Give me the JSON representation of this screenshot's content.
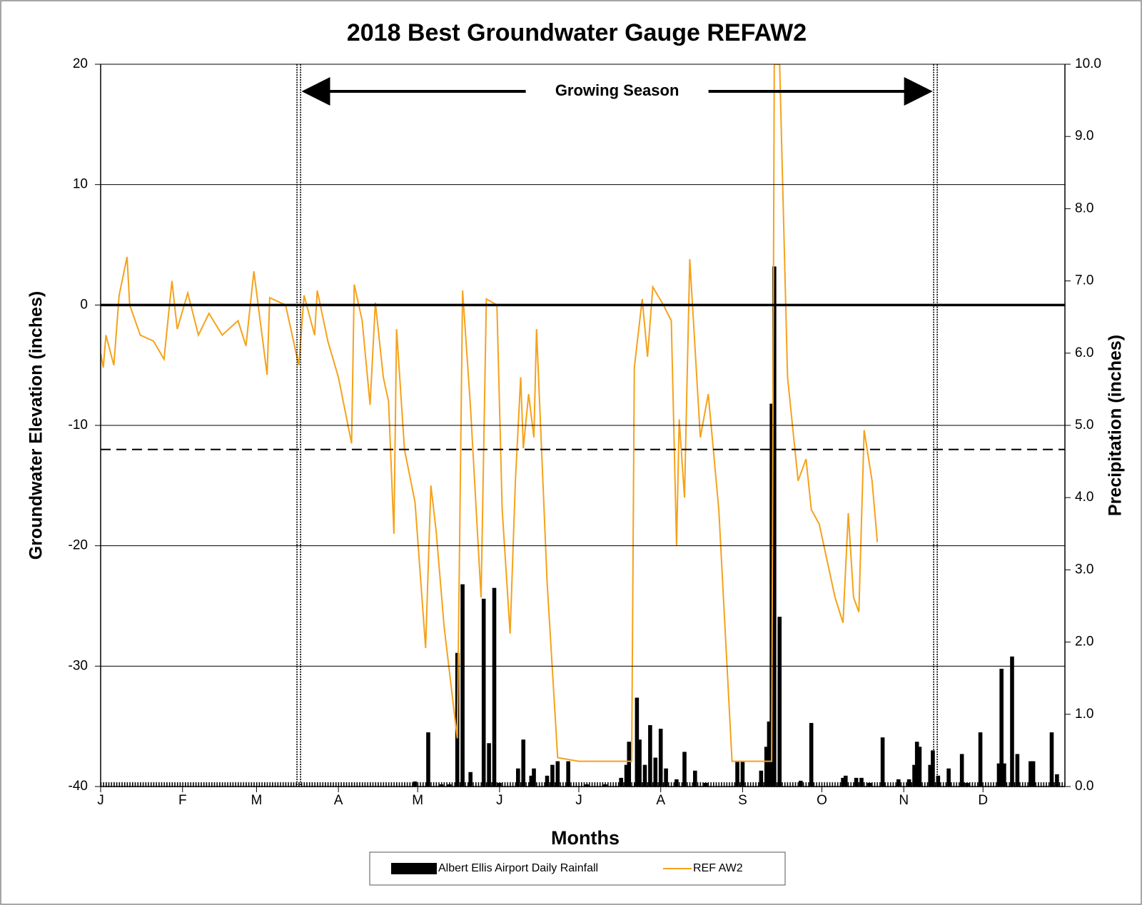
{
  "chart_data": {
    "type": "combo",
    "title": "2018 Best Groundwater Gauge REFAW2",
    "x_label": "Months",
    "y_label": "Groundwater  Elevation (inches)",
    "y2_label": "Precipitation (inches)",
    "xlim": [
      1,
      366
    ],
    "xticks": [
      {
        "value": 1,
        "label": "J"
      },
      {
        "value": 32,
        "label": "F"
      },
      {
        "value": 60,
        "label": "M"
      },
      {
        "value": 91,
        "label": "A"
      },
      {
        "value": 121,
        "label": "M"
      },
      {
        "value": 152,
        "label": "J"
      },
      {
        "value": 182,
        "label": "J"
      },
      {
        "value": 213,
        "label": "A"
      },
      {
        "value": 244,
        "label": "S"
      },
      {
        "value": 274,
        "label": "O"
      },
      {
        "value": 305,
        "label": "N"
      },
      {
        "value": 335,
        "label": "D"
      }
    ],
    "ylim": [
      -40,
      20
    ],
    "yticks": [
      -40,
      -30,
      -20,
      -10,
      0,
      10,
      20
    ],
    "y2lim": [
      0,
      10
    ],
    "y2ticks": [
      {
        "value": 0,
        "label": "0.0"
      },
      {
        "value": 1,
        "label": "1.0"
      },
      {
        "value": 2,
        "label": "2.0"
      },
      {
        "value": 3,
        "label": "3.0"
      },
      {
        "value": 4,
        "label": "4.0"
      },
      {
        "value": 5,
        "label": "5.0"
      },
      {
        "value": 6,
        "label": "6.0"
      },
      {
        "value": 7,
        "label": "7.0"
      },
      {
        "value": 8,
        "label": "8.0"
      },
      {
        "value": 9,
        "label": "9.0"
      },
      {
        "value": 10,
        "label": "10.0"
      }
    ],
    "grid": true,
    "zero_line": 0,
    "threshold": -12,
    "growing_season": {
      "label": "Growing Season",
      "start": 76,
      "end": 317
    },
    "legend": "bottom",
    "series": [
      {
        "name": "Albert Ellis Airport Daily Rainfall",
        "type": "bar",
        "axis": "y2",
        "color": "#000000",
        "x": [
          120,
          125,
          130,
          133,
          136,
          138,
          141,
          146,
          148,
          150,
          152,
          159,
          161,
          164,
          165,
          170,
          172,
          174,
          178,
          185,
          192,
          198,
          200,
          201,
          204,
          205,
          207,
          209,
          211,
          213,
          215,
          219,
          222,
          226,
          230,
          242,
          244,
          251,
          253,
          254,
          255,
          256,
          258,
          266,
          270,
          282,
          283,
          287,
          289,
          292,
          297,
          303,
          307,
          309,
          310,
          311,
          315,
          316,
          318,
          322,
          327,
          329,
          334,
          341,
          342,
          343,
          346,
          348,
          353,
          354,
          361,
          363
        ],
        "values": [
          0.07,
          0.75,
          0.03,
          0.03,
          1.85,
          2.8,
          0.2,
          2.6,
          0.6,
          2.75,
          0.05,
          0.25,
          0.65,
          0.15,
          0.25,
          0.15,
          0.3,
          0.35,
          0.35,
          0.03,
          0.03,
          0.12,
          0.3,
          0.62,
          1.23,
          0.65,
          0.3,
          0.85,
          0.4,
          0.8,
          0.25,
          0.1,
          0.48,
          0.22,
          0.05,
          0.35,
          0.35,
          0.22,
          0.55,
          0.9,
          5.3,
          7.2,
          2.35,
          0.08,
          0.88,
          0.12,
          0.15,
          0.12,
          0.12,
          0.05,
          0.68,
          0.1,
          0.1,
          0.3,
          0.62,
          0.55,
          0.3,
          0.5,
          0.15,
          0.25,
          0.45,
          0.05,
          0.75,
          0.32,
          1.63,
          0.32,
          1.8,
          0.45,
          0.35,
          0.35,
          0.75,
          0.17
        ]
      },
      {
        "name": "REF AW2",
        "type": "line",
        "color": "#f5a21b",
        "x": [
          1,
          2,
          3,
          6,
          8,
          11,
          12,
          16,
          21,
          25,
          28,
          30,
          34,
          38,
          42,
          47,
          53,
          56,
          59,
          64,
          65,
          71,
          74,
          76,
          78,
          82,
          83,
          87,
          91,
          96,
          97,
          100,
          103,
          105,
          108,
          110,
          112,
          113,
          116,
          120,
          124,
          126,
          128,
          131,
          136,
          138,
          141,
          145,
          147,
          151,
          153,
          156,
          158,
          160,
          161,
          163,
          165,
          166,
          170,
          174,
          182,
          202,
          203,
          206,
          208,
          210,
          214,
          217,
          219,
          220,
          222,
          224,
          228,
          231,
          235,
          240,
          255,
          256,
          258,
          261,
          265,
          268,
          270,
          273,
          279,
          282,
          284,
          286,
          288,
          290,
          293,
          295
        ],
        "values": [
          -4,
          -5.2,
          -2.5,
          -5,
          0.8,
          4,
          0,
          -2.5,
          -3,
          -4.5,
          2,
          -2,
          1,
          -2.5,
          -0.7,
          -2.5,
          -1.3,
          -3.4,
          2.8,
          -5.8,
          0.6,
          0,
          -3,
          -5,
          0.8,
          -2.5,
          1.2,
          -3,
          -6,
          -11.5,
          1.7,
          -1.3,
          -8.3,
          0.2,
          -6,
          -8,
          -19,
          -2,
          -12,
          -16.4,
          -28.5,
          -15,
          -18.8,
          -26.7,
          -36,
          1.2,
          -8.5,
          -24.3,
          0.5,
          0,
          -17,
          -27.3,
          -14.6,
          -6,
          -11.9,
          -7.4,
          -11,
          -2,
          -23,
          -37.6,
          -37.9,
          -37.9,
          -5.2,
          0.5,
          -4.3,
          1.5,
          0,
          -1.3,
          -20,
          -9.5,
          -16,
          3.8,
          -11,
          -7.4,
          -17,
          -37.9,
          -37.9,
          20,
          20,
          -6,
          -14.6,
          -12.8,
          -17,
          -18.2,
          -24.3,
          -26.4,
          -17.3,
          -24.3,
          -25.5,
          -10.4,
          -14.6,
          -19.7
        ]
      }
    ]
  }
}
